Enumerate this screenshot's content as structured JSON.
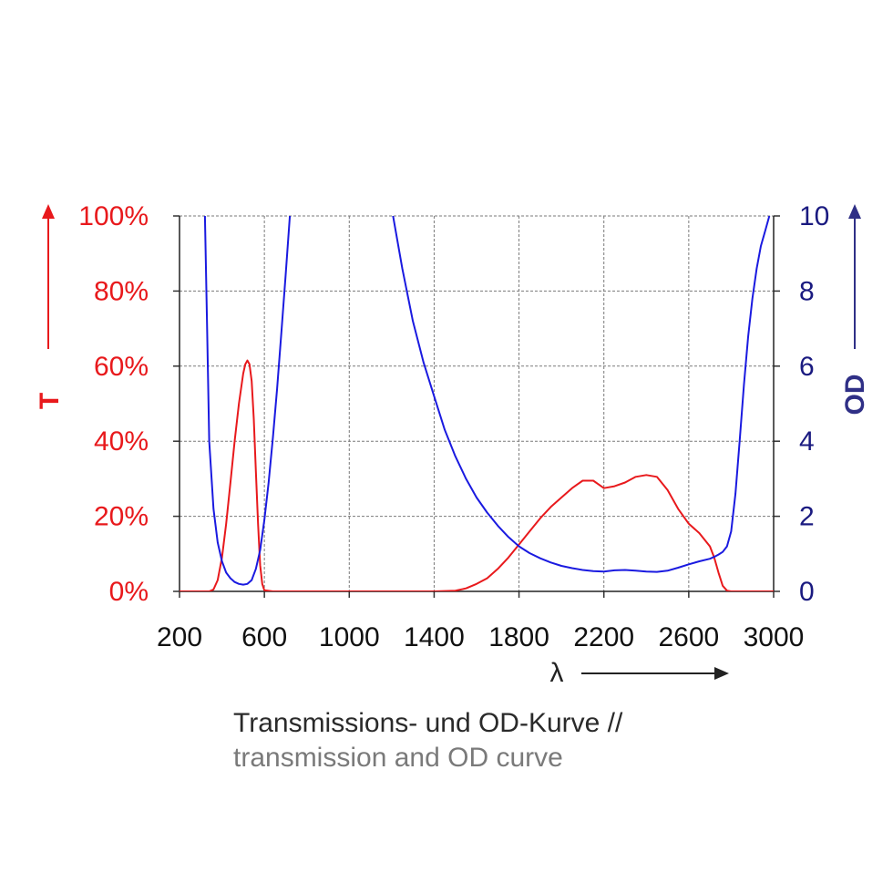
{
  "chart_data": {
    "type": "line",
    "xlabel": "λ",
    "ylabel_left": "T",
    "ylabel_right": "OD",
    "xlim": [
      200,
      3000
    ],
    "ylim_left": [
      0,
      100
    ],
    "ylim_right": [
      0,
      10
    ],
    "x_ticks": [
      "200",
      "600",
      "1000",
      "1400",
      "1800",
      "2200",
      "2600",
      "3000"
    ],
    "x_tick_values": [
      200,
      600,
      1000,
      1400,
      1800,
      2200,
      2600,
      3000
    ],
    "y_left_ticks": [
      "0%",
      "20%",
      "40%",
      "60%",
      "80%",
      "100%"
    ],
    "y_left_tick_values": [
      0,
      20,
      40,
      60,
      80,
      100
    ],
    "y_right_ticks": [
      "0",
      "2",
      "4",
      "6",
      "8",
      "10"
    ],
    "y_right_tick_values": [
      0,
      2,
      4,
      6,
      8,
      10
    ],
    "grid": true,
    "series": [
      {
        "axis": "left",
        "color": "#e8191c",
        "x": [
          200,
          340,
          360,
          380,
          400,
          420,
          440,
          460,
          480,
          500,
          510,
          520,
          530,
          540,
          550,
          560,
          570,
          580,
          590,
          600,
          640,
          1400,
          1500,
          1550,
          1600,
          1650,
          1700,
          1750,
          1800,
          1850,
          1900,
          1950,
          2000,
          2050,
          2100,
          2150,
          2175,
          2200,
          2250,
          2300,
          2350,
          2400,
          2450,
          2500,
          2550,
          2600,
          2650,
          2700,
          2720,
          2740,
          2760,
          2780,
          2800,
          3000
        ],
        "y": [
          0,
          0,
          0.5,
          3,
          9,
          18,
          29,
          40,
          50,
          58,
          60.5,
          61.5,
          60.5,
          56,
          46,
          32,
          18,
          7,
          2,
          0.3,
          0,
          0,
          0.2,
          0.8,
          2,
          3.5,
          6,
          9,
          12.5,
          16,
          19.5,
          22.5,
          25,
          27.5,
          29.5,
          29.5,
          28.5,
          27.5,
          28,
          29,
          30.5,
          31,
          30.5,
          27,
          22,
          18,
          15.5,
          12,
          9,
          5,
          1.5,
          0.2,
          0,
          0
        ]
      },
      {
        "axis": "right",
        "color": "#1a1ae0",
        "x": [
          320,
          330,
          340,
          360,
          380,
          400,
          420,
          440,
          460,
          480,
          500,
          520,
          540,
          560,
          580,
          600,
          620,
          640,
          660,
          680,
          700,
          720,
          740,
          760,
          1180,
          1200,
          1250,
          1300,
          1350,
          1400,
          1450,
          1500,
          1550,
          1600,
          1650,
          1700,
          1750,
          1800,
          1850,
          1900,
          1950,
          2000,
          2050,
          2100,
          2150,
          2200,
          2250,
          2300,
          2350,
          2400,
          2450,
          2500,
          2550,
          2600,
          2650,
          2700,
          2720,
          2740,
          2760,
          2780,
          2800,
          2820,
          2840,
          2860,
          2880,
          2900,
          2920,
          2940,
          2960,
          2980
        ],
        "y": [
          10,
          7,
          4,
          2.2,
          1.3,
          0.8,
          0.5,
          0.35,
          0.25,
          0.2,
          0.18,
          0.2,
          0.3,
          0.6,
          1.1,
          1.9,
          2.9,
          4.1,
          5.4,
          6.9,
          8.4,
          10,
          11,
          12,
          12,
          10.2,
          8.6,
          7.2,
          6.1,
          5.2,
          4.3,
          3.6,
          3.0,
          2.5,
          2.1,
          1.75,
          1.45,
          1.2,
          1.02,
          0.88,
          0.77,
          0.68,
          0.62,
          0.57,
          0.54,
          0.53,
          0.56,
          0.57,
          0.55,
          0.53,
          0.52,
          0.55,
          0.63,
          0.72,
          0.8,
          0.87,
          0.92,
          0.98,
          1.05,
          1.2,
          1.6,
          2.6,
          4.0,
          5.5,
          6.8,
          7.8,
          8.6,
          9.2,
          9.6,
          10
        ]
      }
    ]
  },
  "caption": {
    "de": "Transmissions- und OD-Kurve //",
    "en": "transmission and OD curve"
  }
}
